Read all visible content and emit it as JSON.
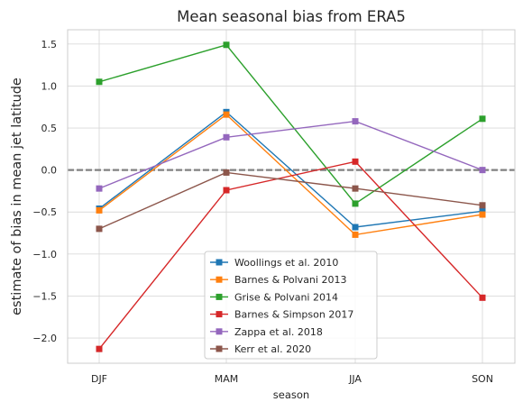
{
  "chart_data": {
    "type": "line",
    "title": "Mean seasonal bias from ERA5",
    "xlabel": "season",
    "ylabel": "estimate of bias in mean jet latitude",
    "categories": [
      "DJF",
      "MAM",
      "JJA",
      "SON"
    ],
    "ylim": [
      -2.3,
      1.67
    ],
    "yticks": [
      -2.0,
      -1.5,
      -1.0,
      -0.5,
      0.0,
      0.5,
      1.0,
      1.5
    ],
    "ytick_labels": [
      "−2.0",
      "−1.5",
      "−1.0",
      "−0.5",
      "0.0",
      "0.5",
      "1.0",
      "1.5"
    ],
    "reference_line": {
      "y": 0.0,
      "style": "dashed",
      "color": "#808080"
    },
    "grid": true,
    "legend_position": "lower center",
    "series": [
      {
        "name": "Woollings et al. 2010",
        "color": "#1f77b4",
        "values": [
          -0.46,
          0.69,
          -0.68,
          -0.49
        ]
      },
      {
        "name": "Barnes & Polvani 2013",
        "color": "#ff7f0e",
        "values": [
          -0.48,
          0.66,
          -0.77,
          -0.53
        ]
      },
      {
        "name": "Grise & Polvani 2014",
        "color": "#2ca02c",
        "values": [
          1.05,
          1.49,
          -0.4,
          0.61
        ]
      },
      {
        "name": "Barnes & Simpson 2017",
        "color": "#d62728",
        "values": [
          -2.13,
          -0.24,
          0.1,
          -1.52
        ]
      },
      {
        "name": "Zappa et al. 2018",
        "color": "#9467bd",
        "values": [
          -0.22,
          0.39,
          0.58,
          0.0
        ]
      },
      {
        "name": "Kerr et al. 2020",
        "color": "#8c564b",
        "values": [
          -0.7,
          -0.03,
          -0.22,
          -0.42
        ]
      }
    ]
  }
}
